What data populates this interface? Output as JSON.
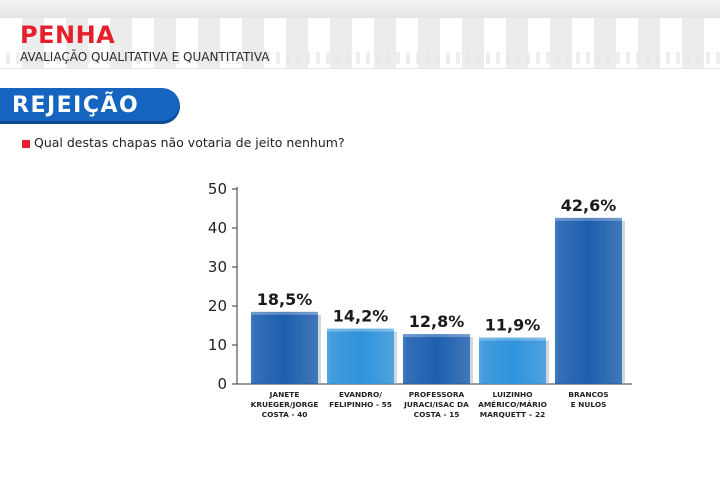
{
  "header": {
    "city": "PENHA",
    "subtitle": "AVALIAÇÃO QUALITATIVA E QUANTITATIVA"
  },
  "section": {
    "title": "REJEIÇÃO"
  },
  "question": "Qual destas chapas não votaria de jeito nenhum?",
  "colors": {
    "brand_red": "#e51f2b",
    "banner_blue": "#1565c0",
    "bar_dark_blue": "#1d5fb0",
    "bar_light_blue": "#2f93dc"
  },
  "chart_data": {
    "type": "bar",
    "title": "",
    "xlabel": "",
    "ylabel": "",
    "ylim": [
      0,
      50
    ],
    "yticks": [
      0,
      10,
      20,
      30,
      40,
      50
    ],
    "grid": false,
    "categories": [
      [
        "JANETE",
        "KRUEGER/JORGE",
        "COSTA - 40"
      ],
      [
        "EVANDRO/",
        "FELIPINHO - 55"
      ],
      [
        "PROFESSORA",
        "JURACI/ISAC DA",
        "COSTA - 15"
      ],
      [
        "LUIZINHO",
        "AMÉRICO/MÁRIO",
        "MARQUETT – 22"
      ],
      [
        "BRANCOS",
        "E NULOS"
      ]
    ],
    "values": [
      18.5,
      14.2,
      12.8,
      11.9,
      42.6
    ],
    "value_labels": [
      "18,5%",
      "14,2%",
      "12,8%",
      "11,9%",
      "42,6%"
    ],
    "bar_colors": [
      "#1d5fb0",
      "#2f93dc",
      "#1d5fb0",
      "#2f93dc",
      "#1d5fb0"
    ]
  }
}
